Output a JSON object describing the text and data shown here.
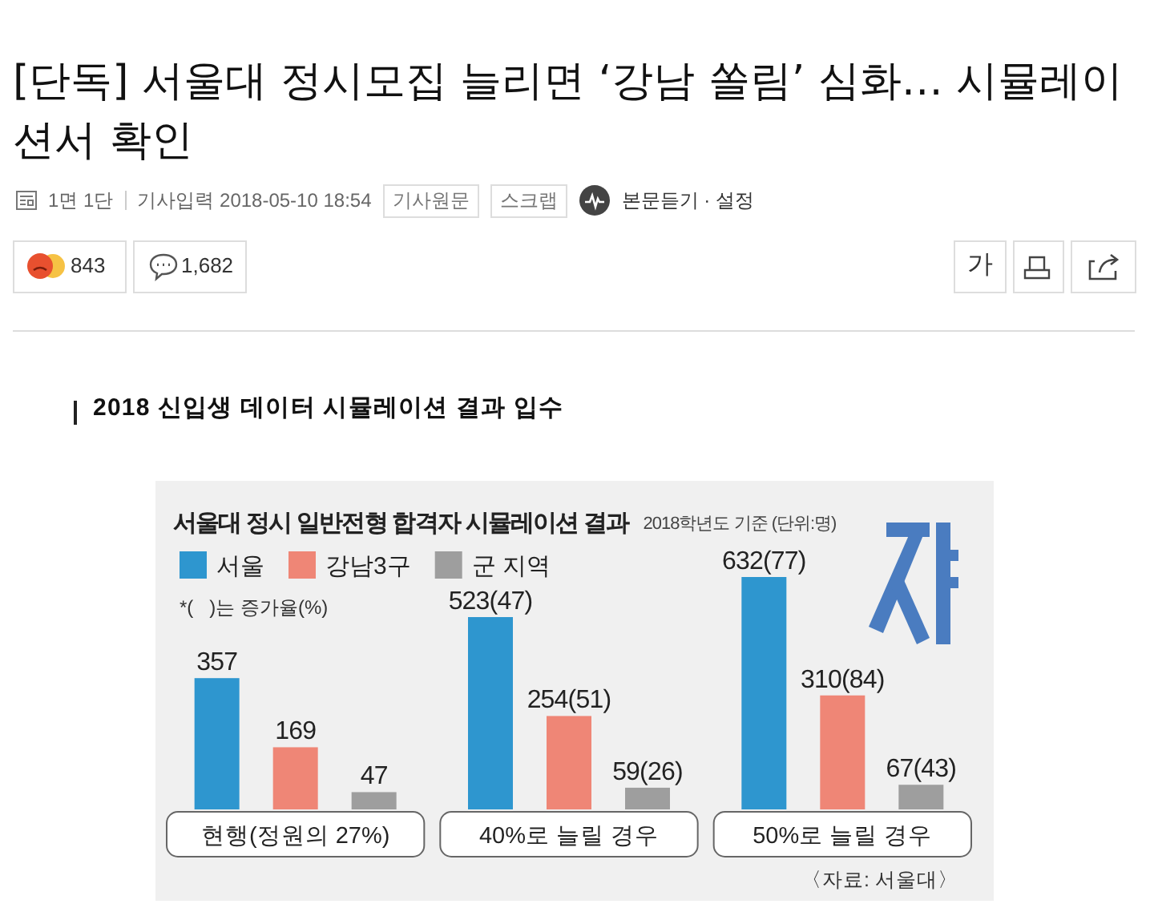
{
  "chart_data": {
    "type": "bar",
    "title": "서울대 정시 일반전형 합격자 시뮬레이션 결과",
    "subtitle": "2018학년도 기준 (단위:명)",
    "categories": [
      "현행(정원의 27%)",
      "40%로 늘릴 경우",
      "50%로 늘릴 경우"
    ],
    "series": [
      {
        "name": "서울",
        "color": "#2e96cf",
        "values": [
          357,
          523,
          632
        ],
        "value_labels": [
          "357",
          "523(47)",
          "632(77)"
        ]
      },
      {
        "name": "강남3구",
        "color": "#ef8676",
        "values": [
          169,
          254,
          310
        ],
        "value_labels": [
          "169",
          "254(51)",
          "310(84)"
        ]
      },
      {
        "name": "군 지역",
        "color": "#9e9e9e",
        "values": [
          47,
          59,
          67
        ],
        "value_labels": [
          "47",
          "59(26)",
          "67(43)"
        ]
      }
    ],
    "legend": "top left",
    "annotations": [
      "[단독] 서울대 정시모집 늘리면 ‘강남 쏠림’ 심화… 시뮬레이션서 확인",
      "1면 1단",
      "기사입력 2018-05-10 18:54",
      "기사원문",
      "스크랩",
      "본문듣기 · 설정",
      "843",
      "1,682",
      "가",
      "2018 신입생 데이터 시뮬레이션 결과 입수",
      "*(   )는 증가율(%)",
      "〈자료: 서울대〉"
    ]
  }
}
